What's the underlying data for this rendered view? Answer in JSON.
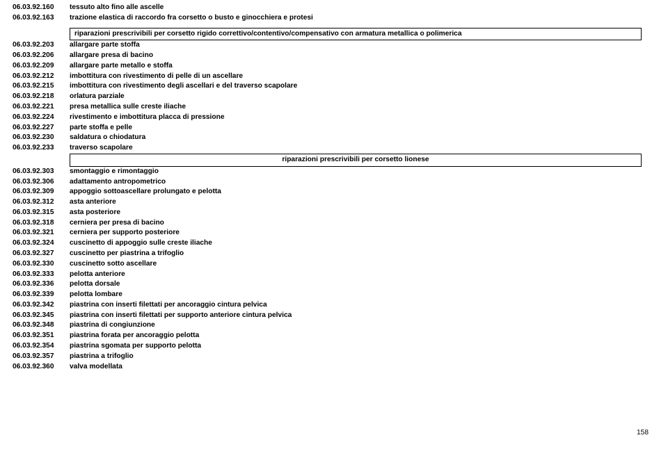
{
  "top_rows": [
    {
      "code": "06.03.92.160",
      "desc": "tessuto alto fino alle ascelle"
    },
    {
      "code": "06.03.92.163",
      "desc": "trazione elastica di raccordo fra corsetto o busto e ginocchiera e protesi"
    }
  ],
  "section1_title": "riparazioni prescrivibili per corsetto rigido correttivo/contentivo/compensativo con armatura metallica o polimerica",
  "section1_rows": [
    {
      "code": "06.03.92.203",
      "desc": "allargare parte stoffa"
    },
    {
      "code": "06.03.92.206",
      "desc": "allargare presa di bacino"
    },
    {
      "code": "06.03.92.209",
      "desc": "allargare parte metallo e stoffa"
    },
    {
      "code": "06.03.92.212",
      "desc": "imbottitura con rivestimento di pelle di un ascellare"
    },
    {
      "code": "06.03.92.215",
      "desc": "imbottitura con rivestimento degli ascellari e del traverso scapolare"
    },
    {
      "code": "06.03.92.218",
      "desc": "orlatura parziale"
    },
    {
      "code": "06.03.92.221",
      "desc": "presa metallica sulle creste iliache"
    },
    {
      "code": "06.03.92.224",
      "desc": "rivestimento e imbottitura placca di pressione"
    },
    {
      "code": "06.03.92.227",
      "desc": "parte stoffa e pelle"
    },
    {
      "code": "06.03.92.230",
      "desc": "saldatura o chiodatura"
    },
    {
      "code": "06.03.92.233",
      "desc": "traverso scapolare"
    }
  ],
  "section2_title": "riparazioni prescrivibili per corsetto lionese",
  "section2_rows": [
    {
      "code": "06.03.92.303",
      "desc": "smontaggio e rimontaggio"
    },
    {
      "code": "06.03.92.306",
      "desc": "adattamento antropometrico"
    },
    {
      "code": "06.03.92.309",
      "desc": "appoggio sottoascellare prolungato e pelotta"
    },
    {
      "code": "06.03.92.312",
      "desc": "asta anteriore"
    },
    {
      "code": "06.03.92.315",
      "desc": "asta posteriore"
    },
    {
      "code": "06.03.92.318",
      "desc": "cerniera per presa di bacino"
    },
    {
      "code": "06.03.92.321",
      "desc": "cerniera per supporto posteriore"
    },
    {
      "code": "06.03.92.324",
      "desc": "cuscinetto di appoggio sulle creste iliache"
    },
    {
      "code": "06.03.92.327",
      "desc": "cuscinetto per piastrina a trifoglio"
    },
    {
      "code": "06.03.92.330",
      "desc": "cuscinetto sotto ascellare"
    },
    {
      "code": "06.03.92.333",
      "desc": "pelotta anteriore"
    },
    {
      "code": "06.03.92.336",
      "desc": "pelotta dorsale"
    },
    {
      "code": "06.03.92.339",
      "desc": "pelotta lombare"
    },
    {
      "code": "06.03.92.342",
      "desc": "piastrina con inserti filettati per ancoraggio cintura pelvica"
    },
    {
      "code": "06.03.92.345",
      "desc": "piastrina con inserti filettati per supporto anteriore cintura pelvica"
    },
    {
      "code": "06.03.92.348",
      "desc": "piastrina di congiunzione"
    },
    {
      "code": "06.03.92.351",
      "desc": "piastrina forata per ancoraggio pelotta"
    },
    {
      "code": "06.03.92.354",
      "desc": "piastrina sgomata per supporto pelotta"
    },
    {
      "code": "06.03.92.357",
      "desc": "piastrina a trifoglio"
    },
    {
      "code": "06.03.92.360",
      "desc": "valva modellata"
    }
  ],
  "page_number": "158"
}
